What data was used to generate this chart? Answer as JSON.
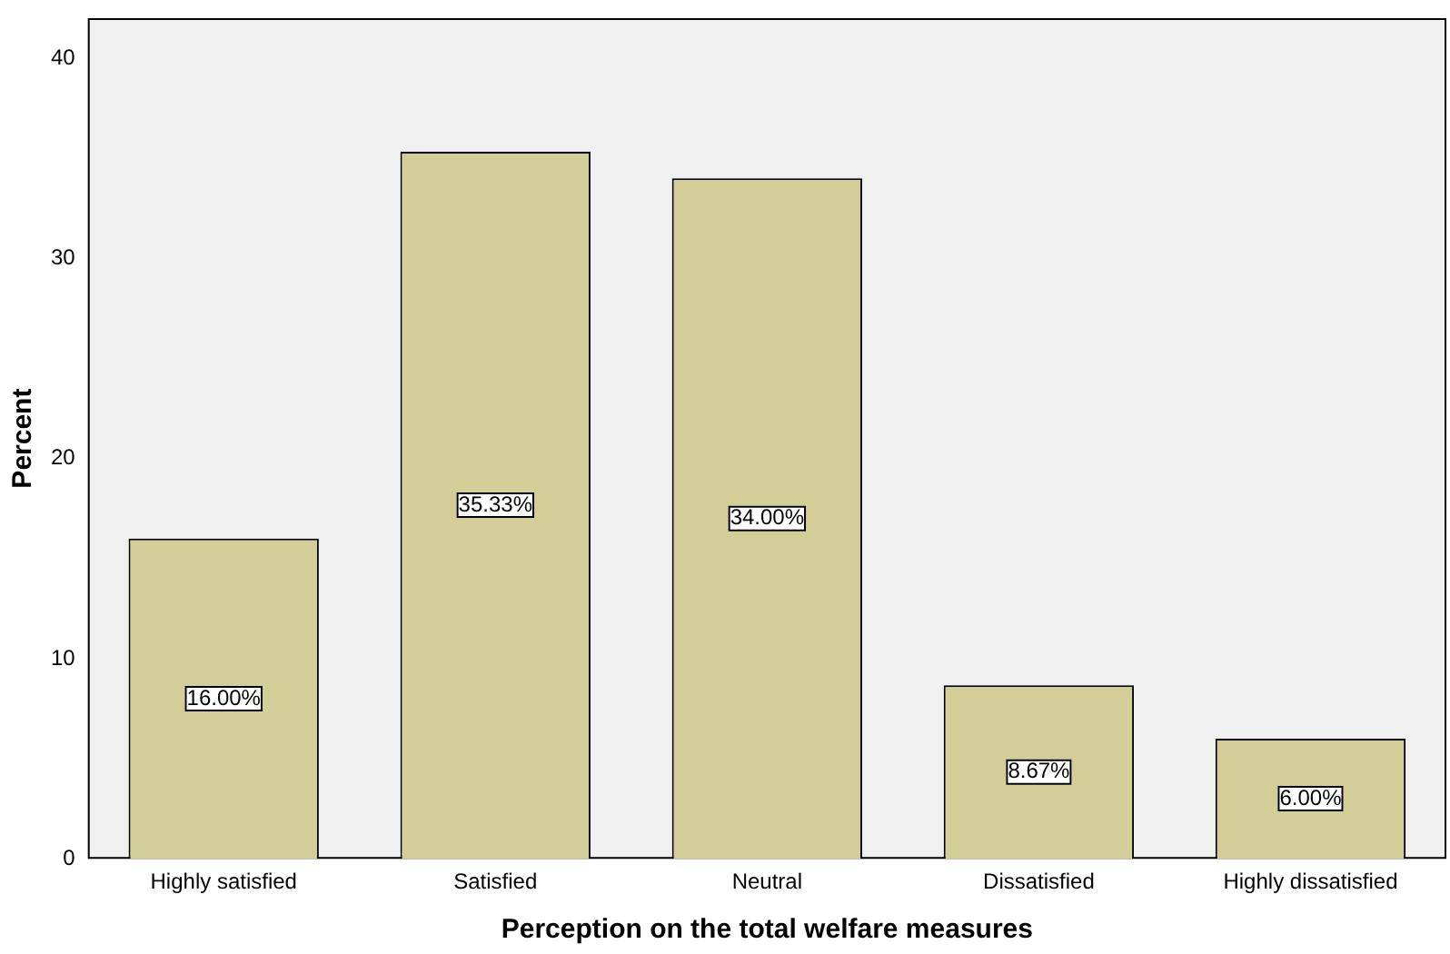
{
  "chart_data": {
    "type": "bar",
    "xlabel": "Perception on the total welfare measures",
    "ylabel": "Percent",
    "categories": [
      "Highly satisfied",
      "Satisfied",
      "Neutral",
      "Dissatisfied",
      "Highly dissatisfied"
    ],
    "values": [
      16.0,
      35.33,
      34.0,
      8.67,
      6.0
    ],
    "value_labels": [
      "16.00%",
      "35.33%",
      "34.00%",
      "8.67%",
      "6.00%"
    ],
    "color": "#d3ce97",
    "ylim": [
      0,
      42
    ],
    "yticks": [
      0,
      10,
      20,
      30,
      40
    ],
    "grid": false,
    "legend": false
  }
}
